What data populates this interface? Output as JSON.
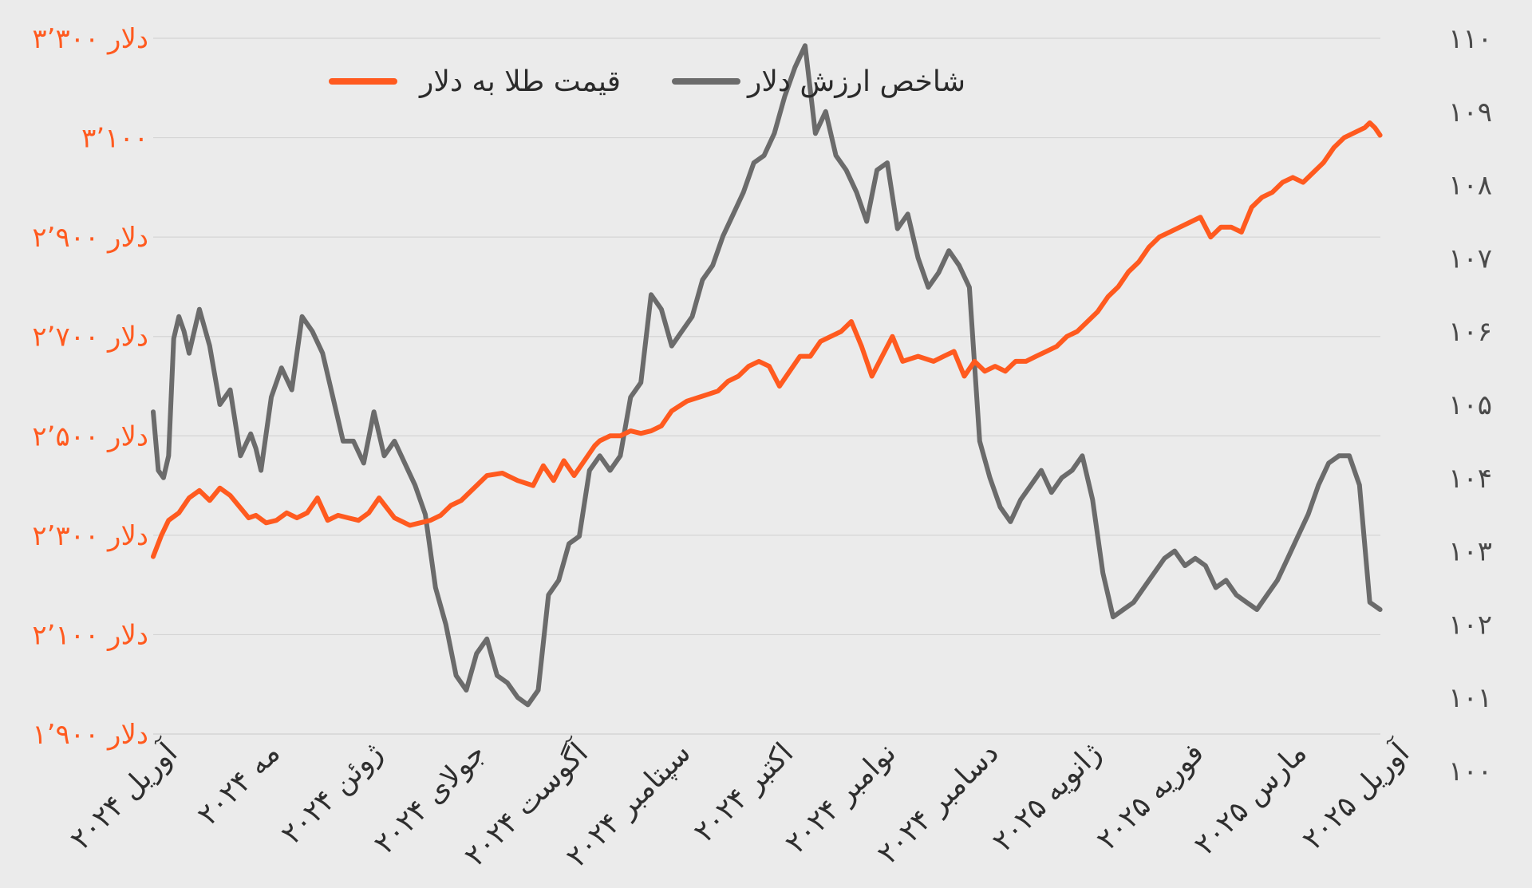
{
  "chart_data": {
    "type": "line",
    "title": "",
    "xlabel": "",
    "legend_position": "top-center",
    "grid": true,
    "x_axis": {
      "tick_labels": [
        "آوریل ۲۰۲۴",
        "مه ۲۰۲۴",
        "ژوئن ۲۰۲۴",
        "جولای ۲۰۲۴",
        "آگوست ۲۰۲۴",
        "سپتامبر ۲۰۲۴",
        "اکتبر ۲۰۲۴",
        "نوامبر ۲۰۲۴",
        "دسامبر ۲۰۲۴",
        "ژانویه ۲۰۲۵",
        "فوریه ۲۰۲۵",
        "مارس ۲۰۲۵",
        "آوریل ۲۰۲۵"
      ]
    },
    "y_left": {
      "range": [
        1900,
        3300
      ],
      "tick_values": [
        1900,
        2100,
        2300,
        2500,
        2700,
        2900,
        3100,
        3300
      ],
      "tick_labels": [
        "۱٬۹۰۰ دلار",
        "۲٬۱۰۰ دلار",
        "۲٬۳۰۰ دلار",
        "۲٬۵۰۰ دلار",
        "۲٬۷۰۰ دلار",
        "۲٬۹۰۰ دلار",
        "۳٬۱۰۰",
        "۳٬۳۰۰ دلار"
      ],
      "color": "#ff5a1f"
    },
    "y_right": {
      "range": [
        100,
        110
      ],
      "tick_values": [
        100,
        101,
        102,
        103,
        104,
        105,
        106,
        107,
        108,
        109,
        110
      ],
      "tick_labels": [
        "۱۰۰",
        "۱۰۱",
        "۱۰۲",
        "۱۰۳",
        "۱۰۴",
        "۱۰۵",
        "۱۰۶",
        "۱۰۷",
        "۱۰۸",
        "۱۰۹",
        "۱۱۰"
      ],
      "color": "#4a4a4a"
    },
    "series": [
      {
        "name": "قیمت طلا به دلار",
        "axis": "left",
        "color": "#ff5a1f",
        "x": [
          0,
          0.08,
          0.15,
          0.25,
          0.35,
          0.45,
          0.55,
          0.65,
          0.75,
          0.85,
          0.93,
          1.0,
          1.1,
          1.2,
          1.3,
          1.4,
          1.5,
          1.6,
          1.7,
          1.8,
          1.9,
          2.0,
          2.1,
          2.2,
          2.35,
          2.5,
          2.6,
          2.7,
          2.8,
          2.9,
          3.0,
          3.1,
          3.25,
          3.4,
          3.55,
          3.7,
          3.8,
          3.9,
          4.0,
          4.1,
          4.2,
          4.3,
          4.35,
          4.45,
          4.55,
          4.65,
          4.75,
          4.85,
          4.95,
          5.05,
          5.2,
          5.35,
          5.5,
          5.6,
          5.7,
          5.8,
          5.9,
          6.0,
          6.1,
          6.2,
          6.3,
          6.4,
          6.5,
          6.6,
          6.7,
          6.8,
          6.9,
          7.0,
          7.1,
          7.2,
          7.3,
          7.45,
          7.6,
          7.7,
          7.8,
          7.9,
          8.0,
          8.1,
          8.2,
          8.3,
          8.4,
          8.5,
          8.6,
          8.7,
          8.8,
          8.9,
          9.0,
          9.1,
          9.2,
          9.3,
          9.4,
          9.5,
          9.6,
          9.7,
          9.8,
          9.9,
          10.0,
          10.1,
          10.2,
          10.3,
          10.4,
          10.5,
          10.6,
          10.7,
          10.8,
          10.9,
          11.0,
          11.1,
          11.2,
          11.3,
          11.4,
          11.5,
          11.6,
          11.7,
          11.8,
          11.85,
          11.9,
          11.95
        ],
        "values": [
          2257,
          2300,
          2330,
          2345,
          2375,
          2390,
          2370,
          2395,
          2380,
          2355,
          2335,
          2340,
          2325,
          2330,
          2345,
          2335,
          2345,
          2375,
          2330,
          2340,
          2335,
          2330,
          2345,
          2375,
          2335,
          2320,
          2325,
          2330,
          2340,
          2360,
          2370,
          2390,
          2420,
          2425,
          2410,
          2400,
          2440,
          2410,
          2450,
          2420,
          2450,
          2480,
          2490,
          2500,
          2500,
          2510,
          2505,
          2510,
          2520,
          2550,
          2570,
          2580,
          2590,
          2610,
          2620,
          2640,
          2650,
          2640,
          2600,
          2630,
          2660,
          2660,
          2690,
          2700,
          2710,
          2730,
          2680,
          2620,
          2660,
          2700,
          2650,
          2660,
          2650,
          2660,
          2670,
          2620,
          2650,
          2630,
          2640,
          2630,
          2650,
          2650,
          2660,
          2670,
          2680,
          2700,
          2710,
          2730,
          2750,
          2780,
          2800,
          2830,
          2850,
          2880,
          2900,
          2910,
          2920,
          2930,
          2940,
          2900,
          2920,
          2920,
          2910,
          2960,
          2980,
          2990,
          3010,
          3020,
          3010,
          3030,
          3050,
          3080,
          3100,
          3110,
          3120,
          3130,
          3120,
          3105
        ]
      },
      {
        "name": "شاخص ارزش دلار",
        "axis": "right",
        "color": "#6b6b6b",
        "x": [
          0,
          0.05,
          0.1,
          0.15,
          0.2,
          0.25,
          0.3,
          0.35,
          0.45,
          0.55,
          0.65,
          0.75,
          0.85,
          0.95,
          1.0,
          1.05,
          1.15,
          1.25,
          1.35,
          1.45,
          1.55,
          1.65,
          1.75,
          1.85,
          1.95,
          2.05,
          2.15,
          2.25,
          2.35,
          2.45,
          2.55,
          2.65,
          2.75,
          2.85,
          2.95,
          3.05,
          3.15,
          3.25,
          3.35,
          3.45,
          3.55,
          3.65,
          3.75,
          3.85,
          3.95,
          4.05,
          4.15,
          4.25,
          4.35,
          4.45,
          4.55,
          4.65,
          4.75,
          4.85,
          4.95,
          5.05,
          5.15,
          5.25,
          5.35,
          5.45,
          5.55,
          5.65,
          5.75,
          5.85,
          5.95,
          6.05,
          6.15,
          6.25,
          6.35,
          6.45,
          6.55,
          6.65,
          6.75,
          6.85,
          6.95,
          7.05,
          7.15,
          7.25,
          7.35,
          7.45,
          7.55,
          7.65,
          7.75,
          7.85,
          7.95,
          8.05,
          8.15,
          8.25,
          8.35,
          8.45,
          8.55,
          8.65,
          8.75,
          8.85,
          8.95,
          9.05,
          9.15,
          9.25,
          9.35,
          9.45,
          9.55,
          9.65,
          9.75,
          9.85,
          9.95,
          10.05,
          10.15,
          10.25,
          10.35,
          10.45,
          10.55,
          10.65,
          10.75,
          10.85,
          10.95,
          11.05,
          11.15,
          11.25,
          11.35,
          11.45,
          11.55,
          11.65,
          11.75,
          11.85,
          11.95
        ],
        "values": [
          104.9,
          104.1,
          104.0,
          104.3,
          105.9,
          106.2,
          106.0,
          105.7,
          106.3,
          105.8,
          105.0,
          105.2,
          104.3,
          104.6,
          104.4,
          104.1,
          105.1,
          105.5,
          105.2,
          106.2,
          106.0,
          105.7,
          105.1,
          104.5,
          104.5,
          104.2,
          104.9,
          104.3,
          104.5,
          104.2,
          103.9,
          103.5,
          102.5,
          102.0,
          101.3,
          101.1,
          101.6,
          101.8,
          101.3,
          101.2,
          101.0,
          100.9,
          101.1,
          102.4,
          102.6,
          103.1,
          103.2,
          104.1,
          104.3,
          104.1,
          104.3,
          105.1,
          105.3,
          106.5,
          106.3,
          105.8,
          106.0,
          106.2,
          106.7,
          106.9,
          107.3,
          107.6,
          107.9,
          108.3,
          108.4,
          108.7,
          109.2,
          109.6,
          109.9,
          108.7,
          109.0,
          108.4,
          108.2,
          107.9,
          107.5,
          108.2,
          108.3,
          107.4,
          107.6,
          107.0,
          106.6,
          106.8,
          107.1,
          106.9,
          106.6,
          104.5,
          104.0,
          103.6,
          103.4,
          103.7,
          103.9,
          104.1,
          103.8,
          104.0,
          104.1,
          104.3,
          103.7,
          102.7,
          102.1,
          102.2,
          102.3,
          102.5,
          102.7,
          102.9,
          103.0,
          102.8,
          102.9,
          102.8,
          102.5,
          102.6,
          102.4,
          102.3,
          102.2,
          102.4,
          102.6,
          102.9,
          103.2,
          103.5,
          103.9,
          104.2,
          104.3,
          104.3,
          103.9,
          102.3,
          102.2
        ]
      }
    ]
  }
}
